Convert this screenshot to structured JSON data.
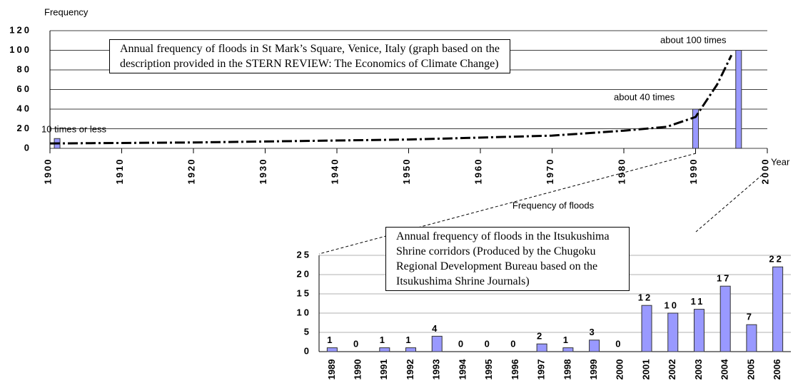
{
  "chart_data": [
    {
      "type": "bar",
      "title": "Annual frequency of floods in St Mark’s Square, Venice, Italy (graph based on the description provided in the STERN REVIEW: The Economics of Climate Change)",
      "y_label": "Frequency",
      "x_label": "Year",
      "x": [
        1901,
        1990,
        1996
      ],
      "values": [
        10,
        40,
        100
      ],
      "color": "#9999ff",
      "trend": {
        "x": [
          1900,
          1920,
          1950,
          1970,
          1980,
          1986,
          1990,
          1993,
          1995
        ],
        "values": [
          5,
          6,
          9,
          13,
          18,
          22,
          32,
          65,
          95
        ]
      },
      "annotations": [
        "10 times or less",
        "about 40 times",
        "about 100 times"
      ],
      "xlim": [
        1900,
        2000
      ],
      "xticks": [
        1900,
        1910,
        1920,
        1930,
        1940,
        1950,
        1960,
        1970,
        1980,
        1990,
        2000
      ],
      "ylim": [
        0,
        120
      ],
      "yticks": [
        0,
        20,
        40,
        60,
        80,
        100,
        120
      ],
      "grid": true
    },
    {
      "type": "bar",
      "title": "Annual frequency of floods in the Itsukushima Shrine corridors (Produced by the Chugoku Regional Development Bureau based on the Itsukushima Shrine Journals)",
      "y_label": "Frequency of floods",
      "categories": [
        "1989",
        "1990",
        "1991",
        "1992",
        "1993",
        "1994",
        "1995",
        "1996",
        "1997",
        "1998",
        "1999",
        "2000",
        "2001",
        "2002",
        "2003",
        "2004",
        "2005",
        "2006"
      ],
      "values": [
        1,
        0,
        1,
        1,
        4,
        0,
        0,
        0,
        2,
        1,
        3,
        0,
        12,
        10,
        11,
        17,
        7,
        22
      ],
      "color": "#9999ff",
      "ylim": [
        0,
        25
      ],
      "yticks": [
        0,
        5,
        10,
        15,
        20,
        25
      ],
      "grid": true
    }
  ]
}
